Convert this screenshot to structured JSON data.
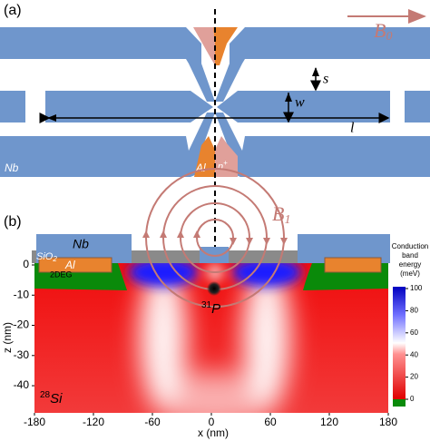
{
  "panel_a": {
    "label": "(a)",
    "field": {
      "base": "B",
      "sub": "0"
    },
    "s": "s",
    "w": "w",
    "l": "l",
    "nb": "Nb",
    "al": "Al",
    "n_plus": {
      "base": "n",
      "sup": "+"
    }
  },
  "panel_b": {
    "label": "(b)",
    "field": {
      "base": "B",
      "sub": "1"
    },
    "nb": "Nb",
    "al": "Al",
    "oxide": {
      "base": "SiO",
      "sub": "2"
    },
    "two_deg": "2DEG",
    "donor": {
      "sup": "31",
      "base": "P"
    },
    "substrate": {
      "sup": "28",
      "base": "Si"
    },
    "xlabel": "x (nm)",
    "ylabel": "z (nm)",
    "xlim": [
      -180,
      180
    ],
    "ylim": [
      0,
      -49
    ],
    "xticks": [
      -180,
      -120,
      -60,
      0,
      60,
      120,
      180
    ],
    "yticks": [
      0,
      -10,
      -20,
      -30,
      -40
    ],
    "colorbar": {
      "title": [
        "Conduction",
        "band",
        "energy",
        "(meV)"
      ],
      "lim": [
        0,
        100
      ],
      "ticks": [
        100,
        80,
        60,
        40,
        20,
        0
      ]
    }
  }
}
